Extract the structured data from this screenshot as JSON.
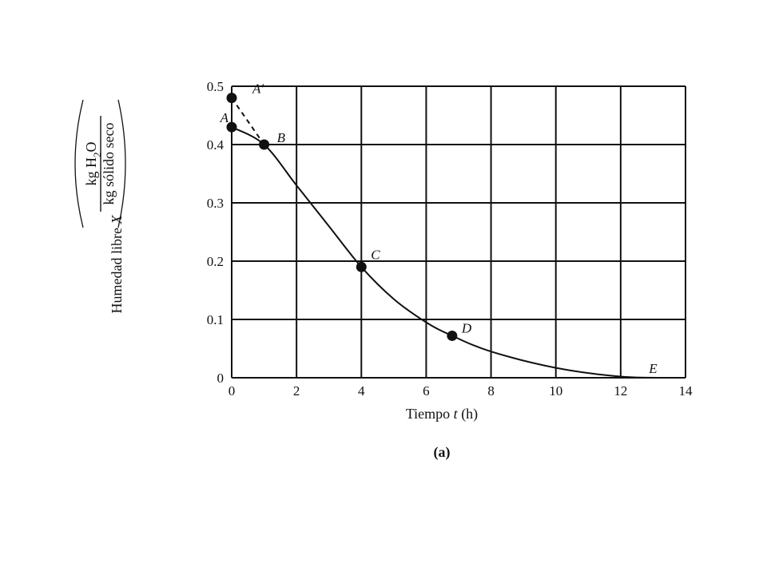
{
  "chart_data": {
    "type": "line",
    "x_ticks": [
      "0",
      "2",
      "4",
      "6",
      "8",
      "10",
      "12",
      "14"
    ],
    "y_ticks": [
      "0",
      "0.1",
      "0.2",
      "0.3",
      "0.4",
      "0.5"
    ],
    "xlim": [
      0,
      14
    ],
    "ylim": [
      0,
      0.5
    ],
    "grid": true,
    "xlabel": {
      "before": "Tiempo ",
      "var": "t",
      "after": " (h)"
    },
    "ylabel": {
      "lead": "Humedad libre ",
      "var": "X",
      "num": "kg H",
      "num_sub": "2",
      "num_tail": "O",
      "den": "kg sólido seco"
    },
    "caption": "(a)",
    "series": [
      {
        "style": "solid",
        "x": [
          0,
          1,
          2,
          3,
          4,
          5,
          6,
          6.8,
          8,
          10,
          12,
          13.5
        ],
        "y": [
          0.43,
          0.4,
          0.33,
          0.26,
          0.19,
          0.135,
          0.095,
          0.072,
          0.045,
          0.017,
          0.002,
          0.0
        ]
      },
      {
        "style": "dashed",
        "x": [
          0,
          1
        ],
        "y": [
          0.48,
          0.4
        ]
      }
    ],
    "points": [
      {
        "label": "A'",
        "x": 0,
        "y": 0.48,
        "marker": true
      },
      {
        "label": "A",
        "x": 0,
        "y": 0.43,
        "marker": true
      },
      {
        "label": "B",
        "x": 1,
        "y": 0.4,
        "marker": true
      },
      {
        "label": "C",
        "x": 4,
        "y": 0.19,
        "marker": true
      },
      {
        "label": "D",
        "x": 6.8,
        "y": 0.072,
        "marker": true
      },
      {
        "label": "E",
        "x": 13,
        "y": 0.0,
        "marker": false
      }
    ]
  }
}
